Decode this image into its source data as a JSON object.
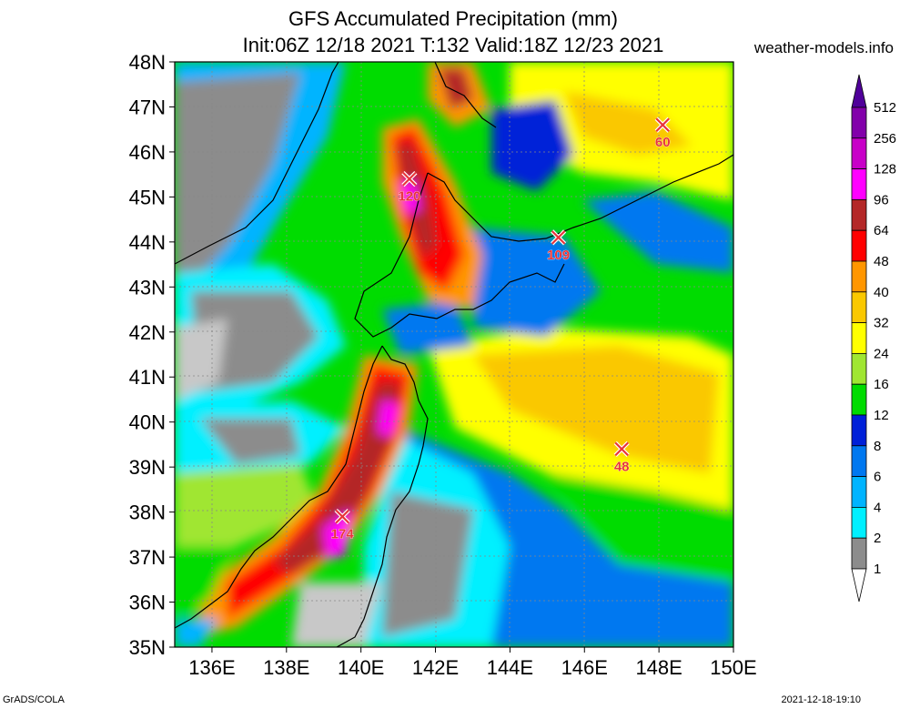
{
  "header": {
    "title_line1": "GFS Accumulated Precipitation (mm)",
    "title_line2": "Init:06Z 12/18 2021 T:132 Valid:18Z 12/23 2021",
    "site": "weather-models.info"
  },
  "footer": {
    "left": "GrADS/COLA",
    "right": "2021-12-18-19:10"
  },
  "map": {
    "lon_range": [
      135,
      150
    ],
    "lat_range": [
      35,
      48
    ],
    "lon_ticks": [
      "136E",
      "138E",
      "140E",
      "142E",
      "144E",
      "146E",
      "148E",
      "150E"
    ],
    "lat_ticks": [
      "35N",
      "36N",
      "37N",
      "38N",
      "39N",
      "40N",
      "41N",
      "42N",
      "43N",
      "44N",
      "45N",
      "46N",
      "47N",
      "48N"
    ],
    "markers": [
      {
        "label": "120",
        "lon": 141.3,
        "lat": 45.4
      },
      {
        "label": "109",
        "lon": 145.3,
        "lat": 44.1
      },
      {
        "label": "60",
        "lon": 148.1,
        "lat": 46.6
      },
      {
        "label": "48",
        "lon": 147.0,
        "lat": 39.4
      },
      {
        "label": "174",
        "lon": 139.5,
        "lat": 37.9
      }
    ]
  },
  "legend": {
    "levels": [
      "1",
      "2",
      "4",
      "6",
      "8",
      "12",
      "16",
      "24",
      "32",
      "40",
      "48",
      "64",
      "96",
      "128",
      "256",
      "512"
    ],
    "colors": [
      "#c8c8c8",
      "#8c8c8c",
      "#00f0ff",
      "#00b4ff",
      "#0078f0",
      "#0020d8",
      "#00dc00",
      "#a0e632",
      "#ffff00",
      "#fac800",
      "#ff9600",
      "#ff0000",
      "#b42828",
      "#ff00ff",
      "#c800c8",
      "#8200aa",
      "#50009a"
    ]
  }
}
